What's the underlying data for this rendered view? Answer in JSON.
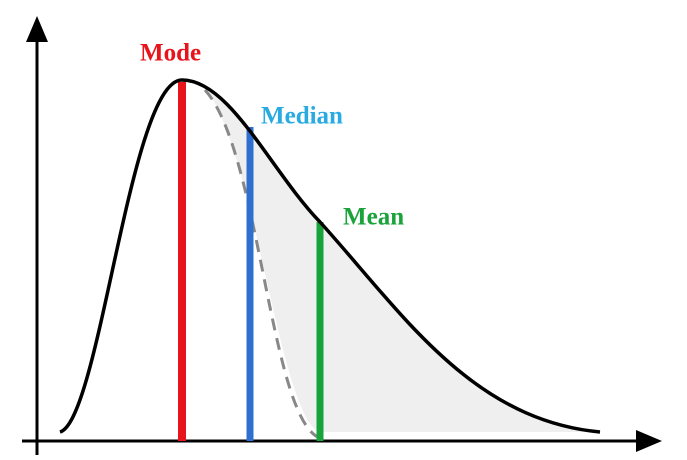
{
  "markers": [
    {
      "label": "Mode"
    },
    {
      "label": "Median"
    },
    {
      "label": "Mean"
    }
  ]
}
